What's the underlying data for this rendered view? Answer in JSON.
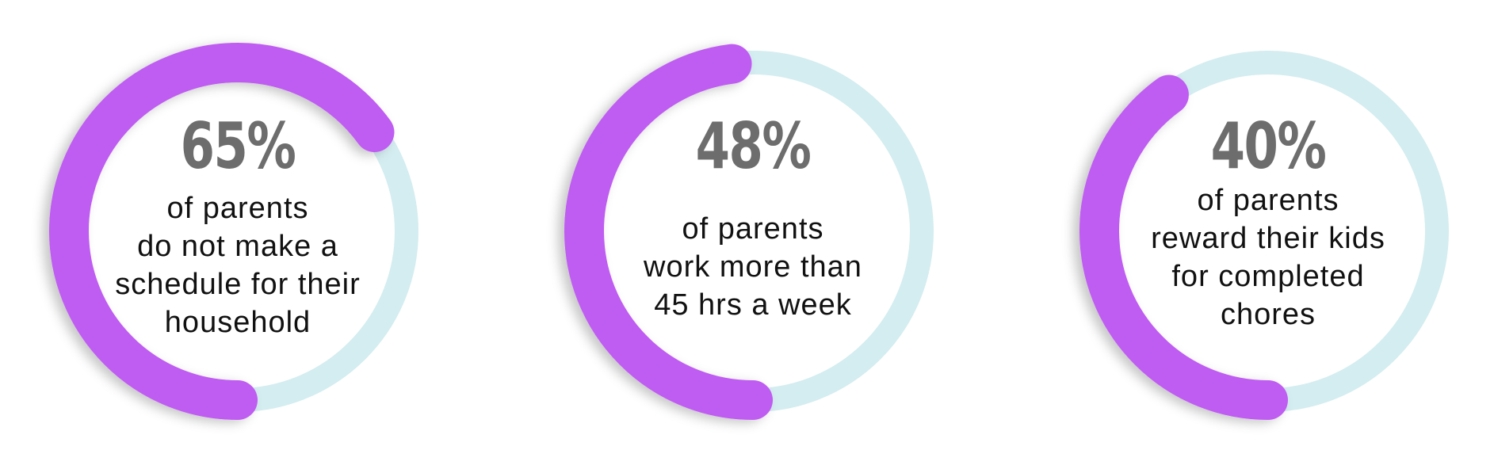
{
  "chart_data": [
    {
      "type": "donut",
      "value": 65,
      "label": "65%",
      "caption_lines": [
        "of parents",
        "do not make a",
        "schedule for their",
        "household"
      ]
    },
    {
      "type": "donut",
      "value": 48,
      "label": "48%",
      "caption_lines": [
        "of parents",
        "work more than",
        "45 hrs a week"
      ]
    },
    {
      "type": "donut",
      "value": 40,
      "label": "40%",
      "caption_lines": [
        "of parents",
        "reward their kids",
        "for completed",
        "chores"
      ]
    }
  ],
  "colors": {
    "progress": "#bf5bf2",
    "track": "#d4edf0",
    "percent_text": "#6d6d6d",
    "caption_text": "#111111"
  }
}
